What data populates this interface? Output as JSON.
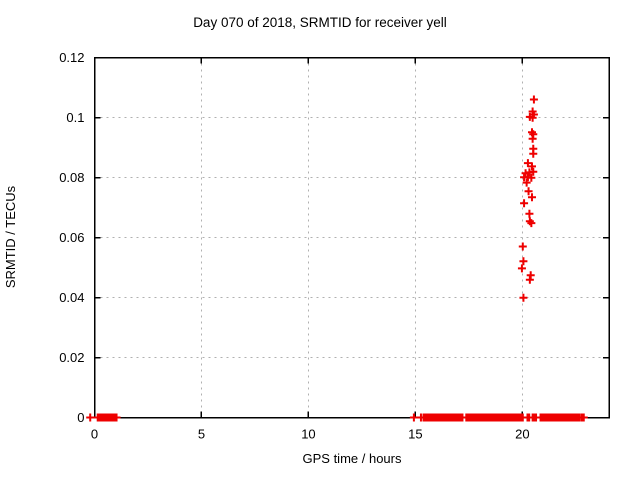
{
  "chart_data": {
    "type": "scatter",
    "title": "Day 070 of 2018, SRMTID for receiver yell",
    "xlabel": "GPS time / hours",
    "ylabel": "SRMTID / TECUs",
    "xlim": [
      0,
      24.05
    ],
    "ylim": [
      0,
      0.12
    ],
    "grid": true,
    "legend": "none",
    "marker": "plus",
    "colors": {
      "marker": "#ee0000",
      "grid": "#b0b0b0",
      "axis": "#000000",
      "background": "#ffffff"
    },
    "x_ticks": [
      {
        "v": 0,
        "label": "0"
      },
      {
        "v": 5,
        "label": "5"
      },
      {
        "v": 10,
        "label": "10"
      },
      {
        "v": 15,
        "label": "15"
      },
      {
        "v": 20,
        "label": "20"
      }
    ],
    "y_ticks": [
      {
        "v": 0,
        "label": "0"
      },
      {
        "v": 0.02,
        "label": "0.02"
      },
      {
        "v": 0.04,
        "label": "0.04"
      },
      {
        "v": 0.06,
        "label": "0.06"
      },
      {
        "v": 0.08,
        "label": "0.08"
      },
      {
        "v": 0.1,
        "label": "0.1"
      },
      {
        "v": 0.12,
        "label": "0.12"
      }
    ],
    "series": [
      {
        "name": "SRMTID",
        "points": [
          [
            20.54,
            0.106
          ],
          [
            20.48,
            0.102
          ],
          [
            20.54,
            0.101
          ],
          [
            20.35,
            0.1002
          ],
          [
            20.48,
            0.0999
          ],
          [
            20.45,
            0.0951
          ],
          [
            20.51,
            0.0944
          ],
          [
            20.48,
            0.0929
          ],
          [
            20.51,
            0.0896
          ],
          [
            20.51,
            0.0879
          ],
          [
            20.26,
            0.0848
          ],
          [
            20.45,
            0.0837
          ],
          [
            20.15,
            0.0814
          ],
          [
            20.33,
            0.0817
          ],
          [
            20.51,
            0.0819
          ],
          [
            20.08,
            0.0801
          ],
          [
            20.26,
            0.0801
          ],
          [
            20.42,
            0.0799
          ],
          [
            20.2,
            0.0783
          ],
          [
            20.29,
            0.0754
          ],
          [
            20.45,
            0.0734
          ],
          [
            20.08,
            0.0714
          ],
          [
            20.33,
            0.0679
          ],
          [
            20.35,
            0.0654
          ],
          [
            20.42,
            0.0648
          ],
          [
            20.02,
            0.057
          ],
          [
            20.05,
            0.0521
          ],
          [
            19.98,
            0.0497
          ],
          [
            20.39,
            0.0474
          ],
          [
            20.35,
            0.0459
          ],
          [
            20.05,
            0.0399
          ]
        ]
      }
    ],
    "baseline": {
      "y": 0,
      "singles": [
        -0.2,
        14.93,
        15.26
      ],
      "runs": [
        [
          0.15,
          1.05
        ],
        [
          15.38,
          15.52
        ],
        [
          15.56,
          17.2
        ],
        [
          17.38,
          20.03
        ],
        [
          20.24,
          20.33
        ],
        [
          20.48,
          20.67
        ],
        [
          20.85,
          22.68
        ],
        [
          22.75,
          22.87
        ]
      ]
    }
  }
}
